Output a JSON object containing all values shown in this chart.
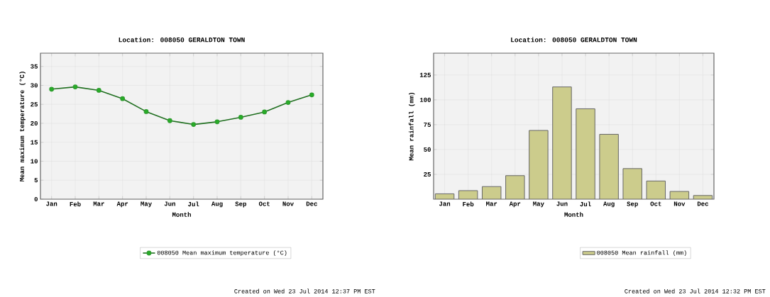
{
  "chart_data": [
    {
      "type": "line",
      "title": "Location: 008050 GERALDTON TOWN",
      "xlabel": "Month",
      "ylabel": "Mean maximum temperature (°C)",
      "categories": [
        "Jan",
        "Feb",
        "Mar",
        "Apr",
        "May",
        "Jun",
        "Jul",
        "Aug",
        "Sep",
        "Oct",
        "Nov",
        "Dec"
      ],
      "series": [
        {
          "name": "008050 Mean maximum temperature (°C)",
          "color": "#2e9e2e",
          "values": [
            29.0,
            29.6,
            28.7,
            26.5,
            23.1,
            20.7,
            19.7,
            20.4,
            21.6,
            23.0,
            25.5,
            27.5
          ]
        }
      ],
      "ylim": [
        0,
        38.5
      ],
      "yticks": [
        0,
        5,
        10,
        15,
        20,
        25,
        30,
        35
      ],
      "grid": true,
      "legend": "bottom",
      "marker": "circle",
      "annotations": [
        "Created on Wed 23 Jul 2014 12:37 PM EST"
      ]
    },
    {
      "type": "bar",
      "title": "Location: 008050 GERALDTON TOWN",
      "xlabel": "Month",
      "ylabel": "Mean rainfall (mm)",
      "categories": [
        "Jan",
        "Feb",
        "Mar",
        "Apr",
        "May",
        "Jun",
        "Jul",
        "Aug",
        "Sep",
        "Oct",
        "Nov",
        "Dec"
      ],
      "series": [
        {
          "name": "008050 Mean rainfall (mm)",
          "color": "#cccc8c",
          "values": [
            5.4,
            8.6,
            12.7,
            23.7,
            69.2,
            113,
            91,
            65.3,
            30.8,
            18.3,
            7.8,
            3.7
          ]
        }
      ],
      "ylim": [
        0,
        147
      ],
      "yticks": [
        25,
        50,
        75,
        100,
        125
      ],
      "grid": true,
      "legend": "bottom",
      "annotations": [
        "Created on Wed 23 Jul 2014 12:32 PM EST"
      ]
    }
  ]
}
